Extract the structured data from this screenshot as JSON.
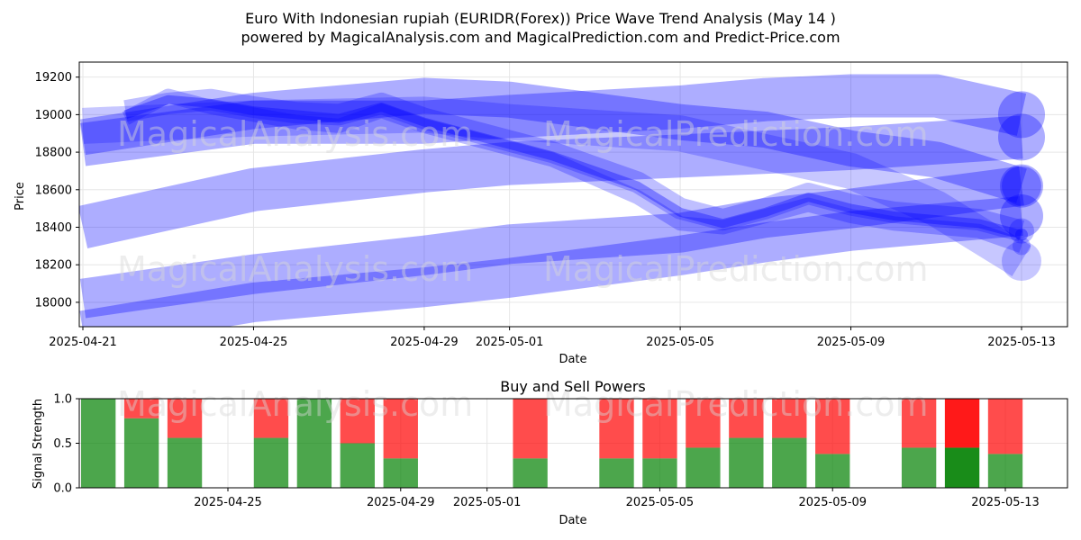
{
  "title_line1": "Euro With Indonesian rupiah (EURIDR(Forex)) Price Wave Trend Analysis (May 14 )",
  "title_line2": "powered by MagicalAnalysis.com and MagicalPrediction.com and Predict-Price.com",
  "watermarks": [
    "MagicalAnalysis.com",
    "MagicalPrediction.com"
  ],
  "colors": {
    "wave": "#0000ff",
    "buy": "#008000",
    "sell": "#ff0000",
    "grid": "#e6e6e6"
  },
  "chart_data": [
    {
      "type": "line",
      "xlabel": "Date",
      "ylabel": "Price",
      "x_ticks": [
        "2025-04-21",
        "2025-04-25",
        "2025-04-29",
        "2025-05-01",
        "2025-05-05",
        "2025-05-09",
        "2025-05-13"
      ],
      "y_ticks": [
        18000,
        18200,
        18400,
        18600,
        18800,
        19000,
        19200
      ],
      "xlim": [
        "2025-04-21",
        "2025-05-14"
      ],
      "ylim": [
        17870,
        19280
      ],
      "grid": true,
      "series": [
        {
          "x": [
            "2025-04-22",
            "2025-04-23",
            "2025-04-24",
            "2025-04-25",
            "2025-04-26",
            "2025-04-27",
            "2025-04-28",
            "2025-04-29",
            "2025-04-30",
            "2025-05-01",
            "2025-05-02",
            "2025-05-03",
            "2025-05-04",
            "2025-05-05",
            "2025-05-06",
            "2025-05-07",
            "2025-05-08",
            "2025-05-09",
            "2025-05-10",
            "2025-05-11",
            "2025-05-12",
            "2025-05-13"
          ],
          "y": [
            19000,
            19080,
            19060,
            19020,
            19000,
            18980,
            19040,
            18960,
            18900,
            18840,
            18780,
            18700,
            18620,
            18480,
            18420,
            18480,
            18560,
            18500,
            18460,
            18440,
            18420,
            18360
          ]
        },
        {
          "x": [
            "2025-04-22",
            "2025-04-23",
            "2025-04-24",
            "2025-04-25",
            "2025-04-26",
            "2025-04-27",
            "2025-04-28",
            "2025-04-29",
            "2025-04-30",
            "2025-05-01",
            "2025-05-02",
            "2025-05-03",
            "2025-05-04",
            "2025-05-05",
            "2025-05-06",
            "2025-05-07",
            "2025-05-08",
            "2025-05-09",
            "2025-05-10",
            "2025-05-11",
            "2025-05-12",
            "2025-05-13"
          ],
          "y": [
            18980,
            19100,
            19040,
            19000,
            18960,
            18940,
            19020,
            18940,
            18880,
            18820,
            18760,
            18660,
            18560,
            18420,
            18400,
            18460,
            18520,
            18460,
            18420,
            18400,
            18380,
            18300
          ]
        },
        {
          "x": [
            "2025-04-22",
            "2025-04-23",
            "2025-04-24",
            "2025-04-25",
            "2025-04-26",
            "2025-04-27",
            "2025-04-28",
            "2025-04-29",
            "2025-04-30",
            "2025-05-01",
            "2025-05-02",
            "2025-05-03",
            "2025-05-04",
            "2025-05-05",
            "2025-05-06",
            "2025-05-07",
            "2025-05-08",
            "2025-05-09",
            "2025-05-10",
            "2025-05-11",
            "2025-05-12",
            "2025-05-13"
          ],
          "y": [
            19020,
            19060,
            19080,
            19040,
            19010,
            19000,
            19060,
            18980,
            18920,
            18860,
            18800,
            18720,
            18640,
            18500,
            18440,
            18500,
            18580,
            18520,
            18480,
            18460,
            18440,
            18380
          ]
        },
        {
          "x": [
            "2025-04-21",
            "2025-04-25",
            "2025-04-29",
            "2025-05-01",
            "2025-05-05",
            "2025-05-07",
            "2025-05-09",
            "2025-05-11",
            "2025-05-13"
          ],
          "y": [
            18880,
            19020,
            19100,
            19080,
            18960,
            18920,
            18820,
            18760,
            18620
          ]
        },
        {
          "x": [
            "2025-04-21",
            "2025-04-25",
            "2025-04-29",
            "2025-05-01",
            "2025-05-05",
            "2025-05-07",
            "2025-05-09",
            "2025-05-11",
            "2025-05-13"
          ],
          "y": [
            18940,
            18980,
            19000,
            18960,
            18900,
            18800,
            18700,
            18500,
            18220
          ]
        },
        {
          "x": [
            "2025-04-21",
            "2025-04-25",
            "2025-04-29",
            "2025-05-01",
            "2025-05-05",
            "2025-05-07",
            "2025-05-09",
            "2025-05-11",
            "2025-05-13"
          ],
          "y": [
            18840,
            18960,
            18960,
            18990,
            19040,
            19080,
            19100,
            19100,
            19000
          ]
        },
        {
          "x": [
            "2025-04-21",
            "2025-04-25",
            "2025-04-29",
            "2025-05-01",
            "2025-05-05",
            "2025-05-07",
            "2025-05-09",
            "2025-05-11",
            "2025-05-13"
          ],
          "y": [
            18400,
            18600,
            18700,
            18740,
            18780,
            18800,
            18820,
            18850,
            18880
          ]
        },
        {
          "x": [
            "2025-04-21",
            "2025-04-25",
            "2025-04-29",
            "2025-05-01",
            "2025-05-05",
            "2025-05-07",
            "2025-05-09",
            "2025-05-11",
            "2025-05-13"
          ],
          "y": [
            18020,
            18150,
            18250,
            18310,
            18370,
            18450,
            18500,
            18560,
            18620
          ]
        },
        {
          "x": [
            "2025-04-21",
            "2025-04-25",
            "2025-04-29",
            "2025-05-01",
            "2025-05-05",
            "2025-05-07",
            "2025-05-09",
            "2025-05-11",
            "2025-05-13"
          ],
          "y": [
            17850,
            18000,
            18080,
            18130,
            18250,
            18320,
            18380,
            18420,
            18460
          ]
        }
      ]
    },
    {
      "type": "bar",
      "title": "Buy and Sell Powers",
      "xlabel": "Date",
      "ylabel": "Signal Strength",
      "x_ticks": [
        "2025-04-25",
        "2025-04-29",
        "2025-05-01",
        "2025-05-05",
        "2025-05-09",
        "2025-05-13"
      ],
      "y_ticks": [
        "0.0",
        "0.5",
        "1.0"
      ],
      "ylim": [
        0,
        1
      ],
      "series": [
        {
          "name": "Buy",
          "color": "#008000",
          "x": [
            "2025-04-22",
            "2025-04-23",
            "2025-04-24",
            "2025-04-26",
            "2025-04-27",
            "2025-04-28",
            "2025-04-29",
            "2025-05-02",
            "2025-05-04",
            "2025-05-05",
            "2025-05-06",
            "2025-05-07",
            "2025-05-08",
            "2025-05-09",
            "2025-05-11",
            "2025-05-12",
            "2025-05-13"
          ],
          "values": [
            1.0,
            0.78,
            0.56,
            0.56,
            1.0,
            0.5,
            0.33,
            0.33,
            0.33,
            0.33,
            0.45,
            0.56,
            0.56,
            0.38,
            0.45,
            0.45,
            0.38
          ]
        },
        {
          "name": "Sell",
          "color": "#ff0000",
          "x": [
            "2025-04-22",
            "2025-04-23",
            "2025-04-24",
            "2025-04-26",
            "2025-04-27",
            "2025-04-28",
            "2025-04-29",
            "2025-05-02",
            "2025-05-04",
            "2025-05-05",
            "2025-05-06",
            "2025-05-07",
            "2025-05-08",
            "2025-05-09",
            "2025-05-11",
            "2025-05-12",
            "2025-05-13"
          ],
          "values": [
            0.0,
            0.22,
            0.44,
            0.44,
            0.0,
            0.5,
            0.67,
            0.67,
            0.67,
            0.67,
            0.55,
            0.44,
            0.44,
            0.62,
            0.55,
            0.55,
            0.62
          ]
        }
      ],
      "highlight_date": "2025-05-12"
    }
  ]
}
